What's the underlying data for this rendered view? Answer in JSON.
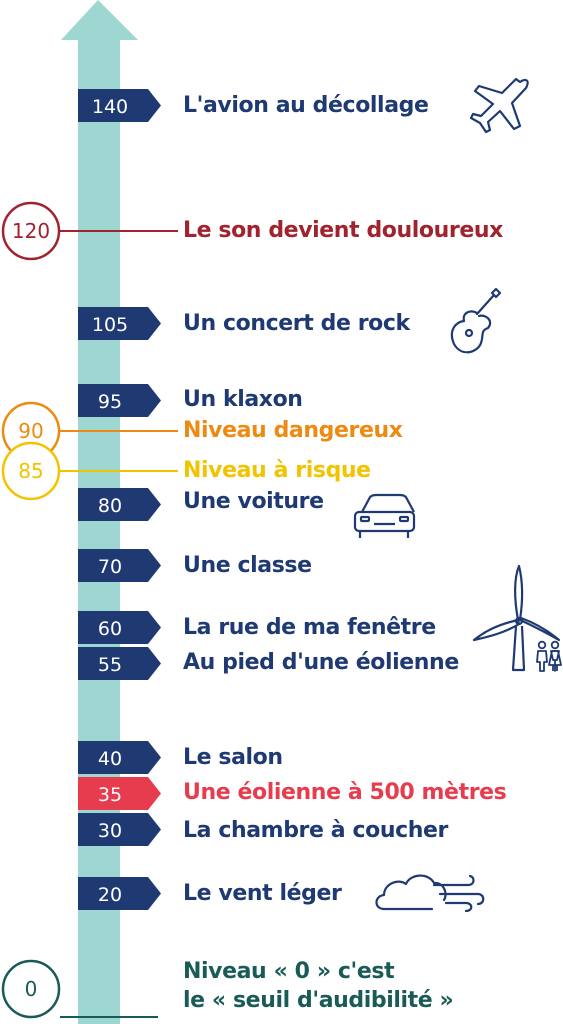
{
  "colors": {
    "arrow": "#9ed7d2",
    "navy": "#1f3a73",
    "accent_red": "#e73c4e",
    "dark_red": "#a0232e",
    "orange": "#ec8a12",
    "yellow": "#f2c300",
    "teal_dark": "#1a5b57"
  },
  "levels": [
    {
      "value": "140",
      "label": "L'avion au décollage",
      "icon": "airplane-icon"
    },
    {
      "value": "105",
      "label": "Un concert de rock",
      "icon": "guitar-icon"
    },
    {
      "value": "95",
      "label": "Un klaxon"
    },
    {
      "value": "80",
      "label": "Une voiture",
      "icon": "car-icon"
    },
    {
      "value": "70",
      "label": "Une classe"
    },
    {
      "value": "60",
      "label": "La rue de ma fenêtre",
      "icon": "wind-turbine-icon"
    },
    {
      "value": "55",
      "label": "Au pied d'une éolienne",
      "icon": "people-icon"
    },
    {
      "value": "40",
      "label": "Le salon"
    },
    {
      "value": "35",
      "label": "Une éolienne à 500 mètres",
      "highlight": true
    },
    {
      "value": "30",
      "label": "La chambre à coucher"
    },
    {
      "value": "20",
      "label": "Le vent léger",
      "icon": "cloud-wind-icon"
    }
  ],
  "thresholds": [
    {
      "value": "120",
      "label": "Le son devient douloureux",
      "color": "#a0232e"
    },
    {
      "value": "90",
      "label": "Niveau dangereux",
      "color": "#ec8a12"
    },
    {
      "value": "85",
      "label": "Niveau à risque",
      "color": "#f2c300"
    }
  ],
  "zero": {
    "value": "0",
    "line1": "Niveau « 0 » c'est",
    "line2": "le « seuil d'audibilité »"
  }
}
